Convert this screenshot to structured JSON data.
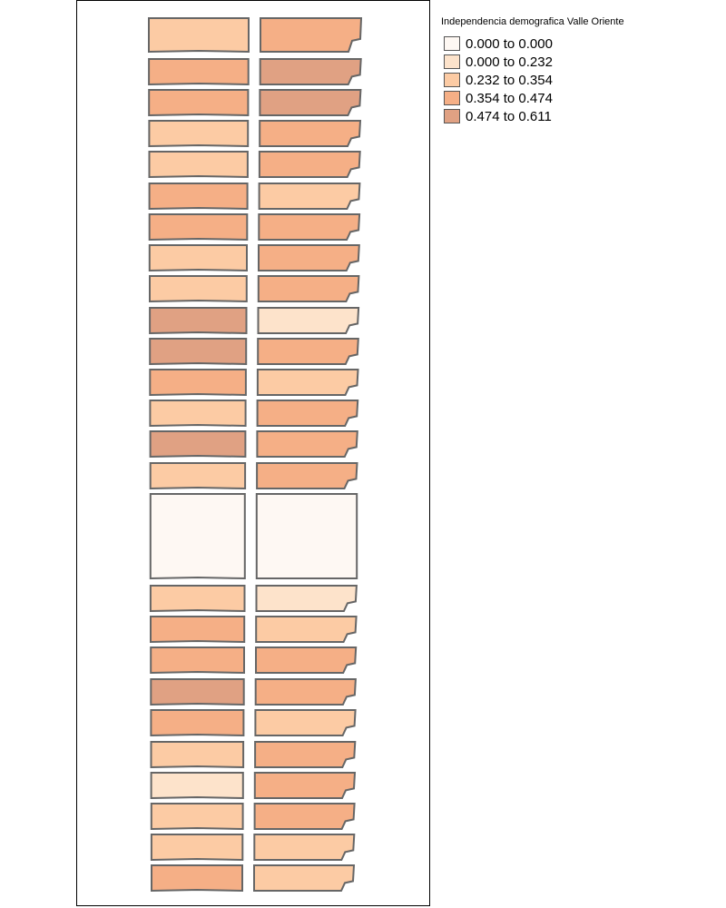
{
  "map": {
    "legend": {
      "title": "Independencia demografica Valle Oriente",
      "classes": [
        {
          "label": "0.000 to 0.000",
          "color": "#fef8f3"
        },
        {
          "label": "0.000 to 0.232",
          "color": "#fde3cb"
        },
        {
          "label": "0.232 to 0.354",
          "color": "#fccba4"
        },
        {
          "label": "0.354 to 0.474",
          "color": "#f5af86"
        },
        {
          "label": "0.474 to 0.611",
          "color": "#e0a183"
        }
      ]
    },
    "outline_color": "#666666",
    "blocks_left": [
      2,
      3,
      3,
      2,
      2,
      3,
      3,
      2,
      2,
      4,
      4,
      3,
      2,
      4,
      2,
      0,
      2,
      3,
      3,
      4,
      3,
      2,
      1,
      2,
      2,
      3
    ],
    "blocks_right": [
      3,
      4,
      4,
      3,
      3,
      2,
      3,
      3,
      3,
      1,
      3,
      2,
      3,
      3,
      3,
      0,
      1,
      2,
      3,
      3,
      2,
      3,
      3,
      3,
      2,
      2
    ]
  }
}
